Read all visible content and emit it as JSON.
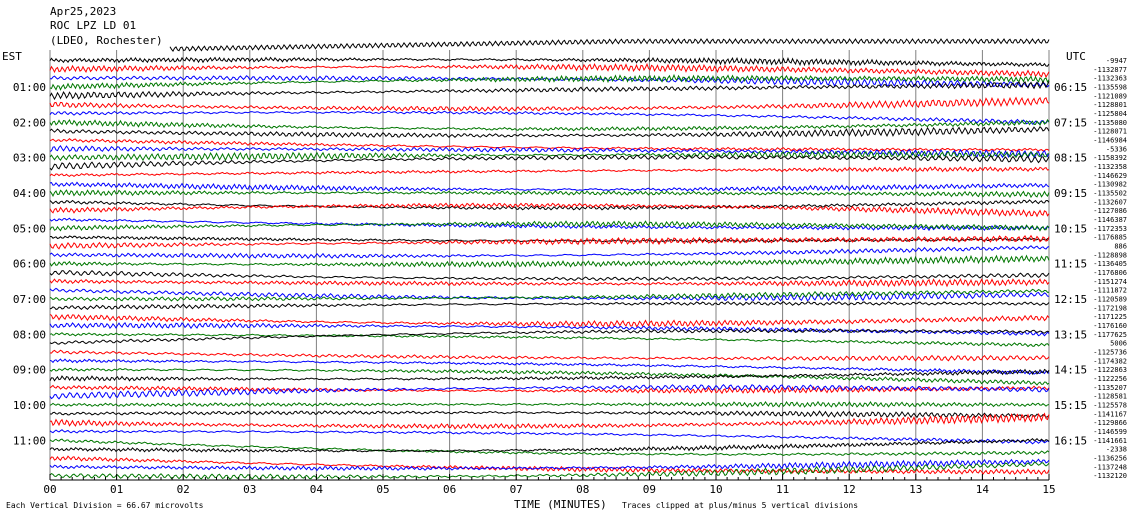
{
  "header": {
    "date": "Apr25,2023",
    "station": "ROC LPZ LD 01",
    "network": "(LDEO, Rochester)"
  },
  "left_axis_title": "EST",
  "right_axis_title": "UTC",
  "footer": {
    "x_axis_title": "TIME (MINUTES)",
    "scale_note": "Each Vertical Division =    66.67 microvolts",
    "clip_note": "Traces clipped at plus/minus 5 vertical divisions"
  },
  "colors": {
    "trace_cycle": [
      "#000000",
      "#ff0000",
      "#0000ff",
      "#007700"
    ],
    "grid": "#808080"
  },
  "chart_data": {
    "type": "line",
    "title": "ROC LPZ LD 01",
    "xlabel": "TIME (MINUTES)",
    "xlim": [
      0,
      15
    ],
    "x_ticks": [
      "00",
      "01",
      "02",
      "03",
      "04",
      "05",
      "06",
      "07",
      "08",
      "09",
      "10",
      "11",
      "12",
      "13",
      "14",
      "15"
    ],
    "left_labels": [
      "01:00",
      "02:00",
      "03:00",
      "04:00",
      "05:00",
      "06:00",
      "07:00",
      "08:00",
      "09:00",
      "10:00",
      "11:00"
    ],
    "right_labels": [
      "06:15",
      "07:15",
      "08:15",
      "09:15",
      "10:15",
      "11:15",
      "12:15",
      "13:15",
      "14:15",
      "15:15",
      "16:15"
    ],
    "trace_count": 48,
    "trace_interval_minutes": 15,
    "trace_offsets": [
      "-9947",
      "-1132877",
      "-1132363",
      "-1135598",
      "-1121089",
      "-1128801",
      "-1125804",
      "-1135080",
      "-1128071",
      "-1146984",
      "-5336",
      "-1158392",
      "-1132358",
      "-1146629",
      "-1130982",
      "-1135502",
      "-1132607",
      "-1127086",
      "-1146387",
      "-1172353",
      "-1176885",
      "886",
      "-1128898",
      "-1136405",
      "-1176806",
      "-1151274",
      "-1111872",
      "-1120589",
      "-1172198",
      "-1171225",
      "-1176160",
      "-1177625",
      "5006",
      "-1125736",
      "-1174382",
      "-1122863",
      "-1122256",
      "-1135207",
      "-1128581",
      "-1125578",
      "-1141167",
      "-1129866",
      "-1146599",
      "-1141661",
      "-2338",
      "-1136256",
      "-1137248",
      "-1132120"
    ]
  }
}
